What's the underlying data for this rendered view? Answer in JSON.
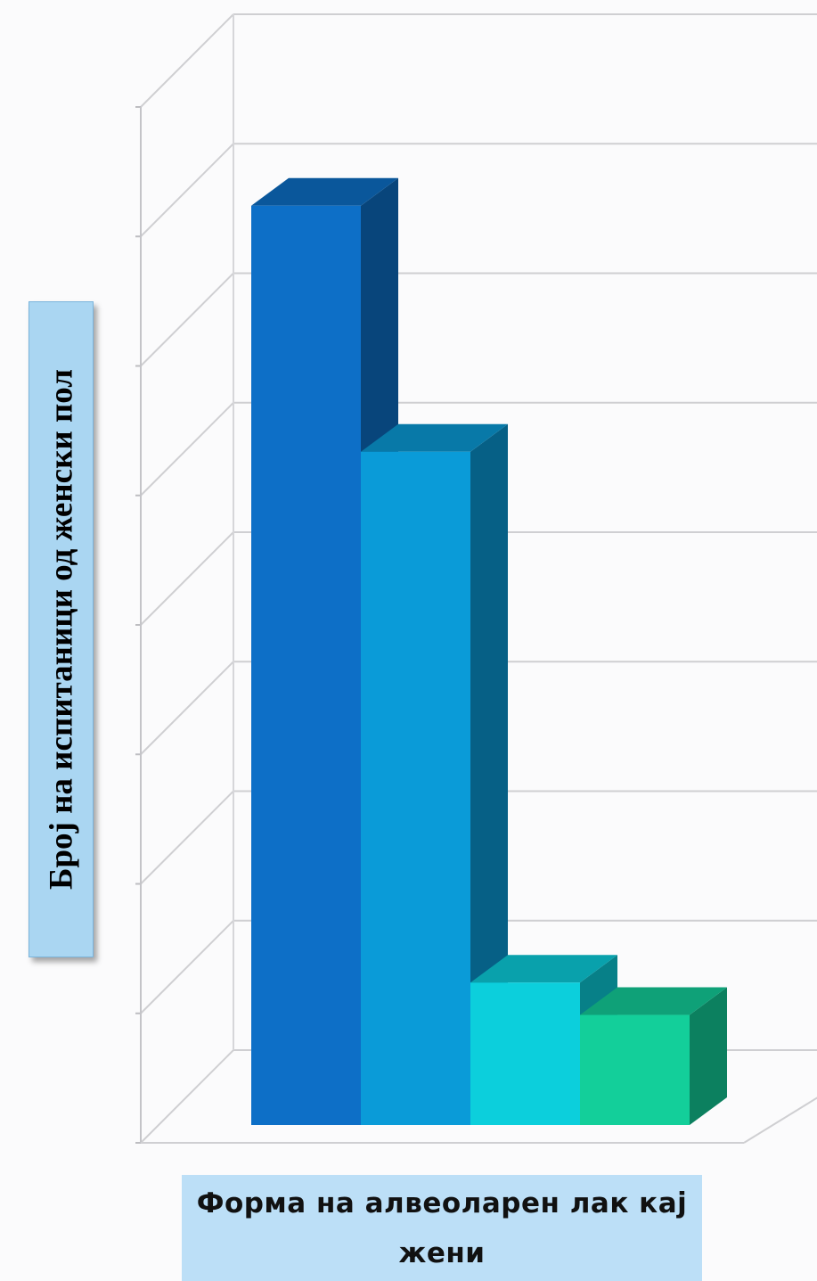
{
  "chart_data": {
    "type": "bar",
    "style": "3d",
    "title": "",
    "xlabel": "Форма на алвеоларен лак кај жени",
    "ylabel": "Број на испитаници од женски пол",
    "ylim": [
      0,
      8
    ],
    "grid": true,
    "gridlines": 8,
    "tick_labels_visible": false,
    "legend": "none",
    "series": [
      {
        "color": "#0d6fc7",
        "values": [
          7.1
        ]
      },
      {
        "color": "#0a9bd8",
        "values": [
          5.2
        ]
      },
      {
        "color": "#0ccfdc",
        "values": [
          1.1
        ]
      },
      {
        "color": "#13cf9a",
        "values": [
          0.85
        ]
      }
    ]
  }
}
